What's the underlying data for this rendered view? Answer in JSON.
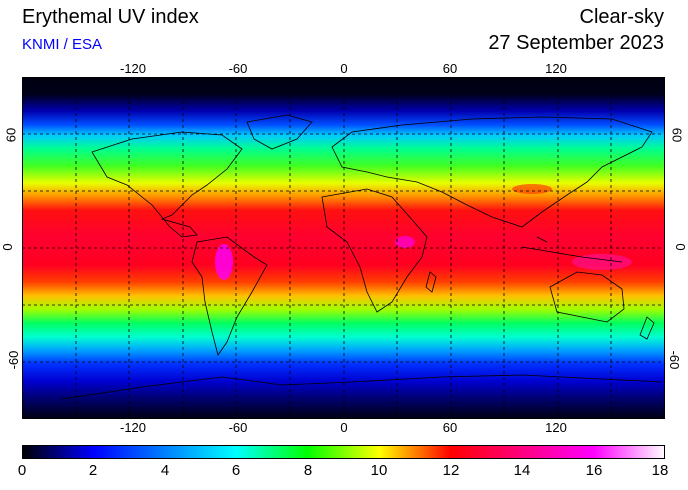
{
  "header": {
    "title": "Erythemal UV index",
    "source": "KNMI / ESA",
    "mode": "Clear-sky",
    "date": "27 September 2023"
  },
  "axes": {
    "lon_ticks": [
      "-120",
      "-60",
      "0",
      "60",
      "120"
    ],
    "lat_ticks": [
      "60",
      "0",
      "-60"
    ]
  },
  "colorbar": {
    "min": 0,
    "max": 18,
    "ticks": [
      "0",
      "2",
      "4",
      "6",
      "8",
      "10",
      "12",
      "14",
      "16",
      "18"
    ],
    "colors": [
      "#000000",
      "#0000ff",
      "#00ffff",
      "#00ff00",
      "#ffff00",
      "#ff0000",
      "#ff00ff",
      "#ffffff"
    ]
  }
}
